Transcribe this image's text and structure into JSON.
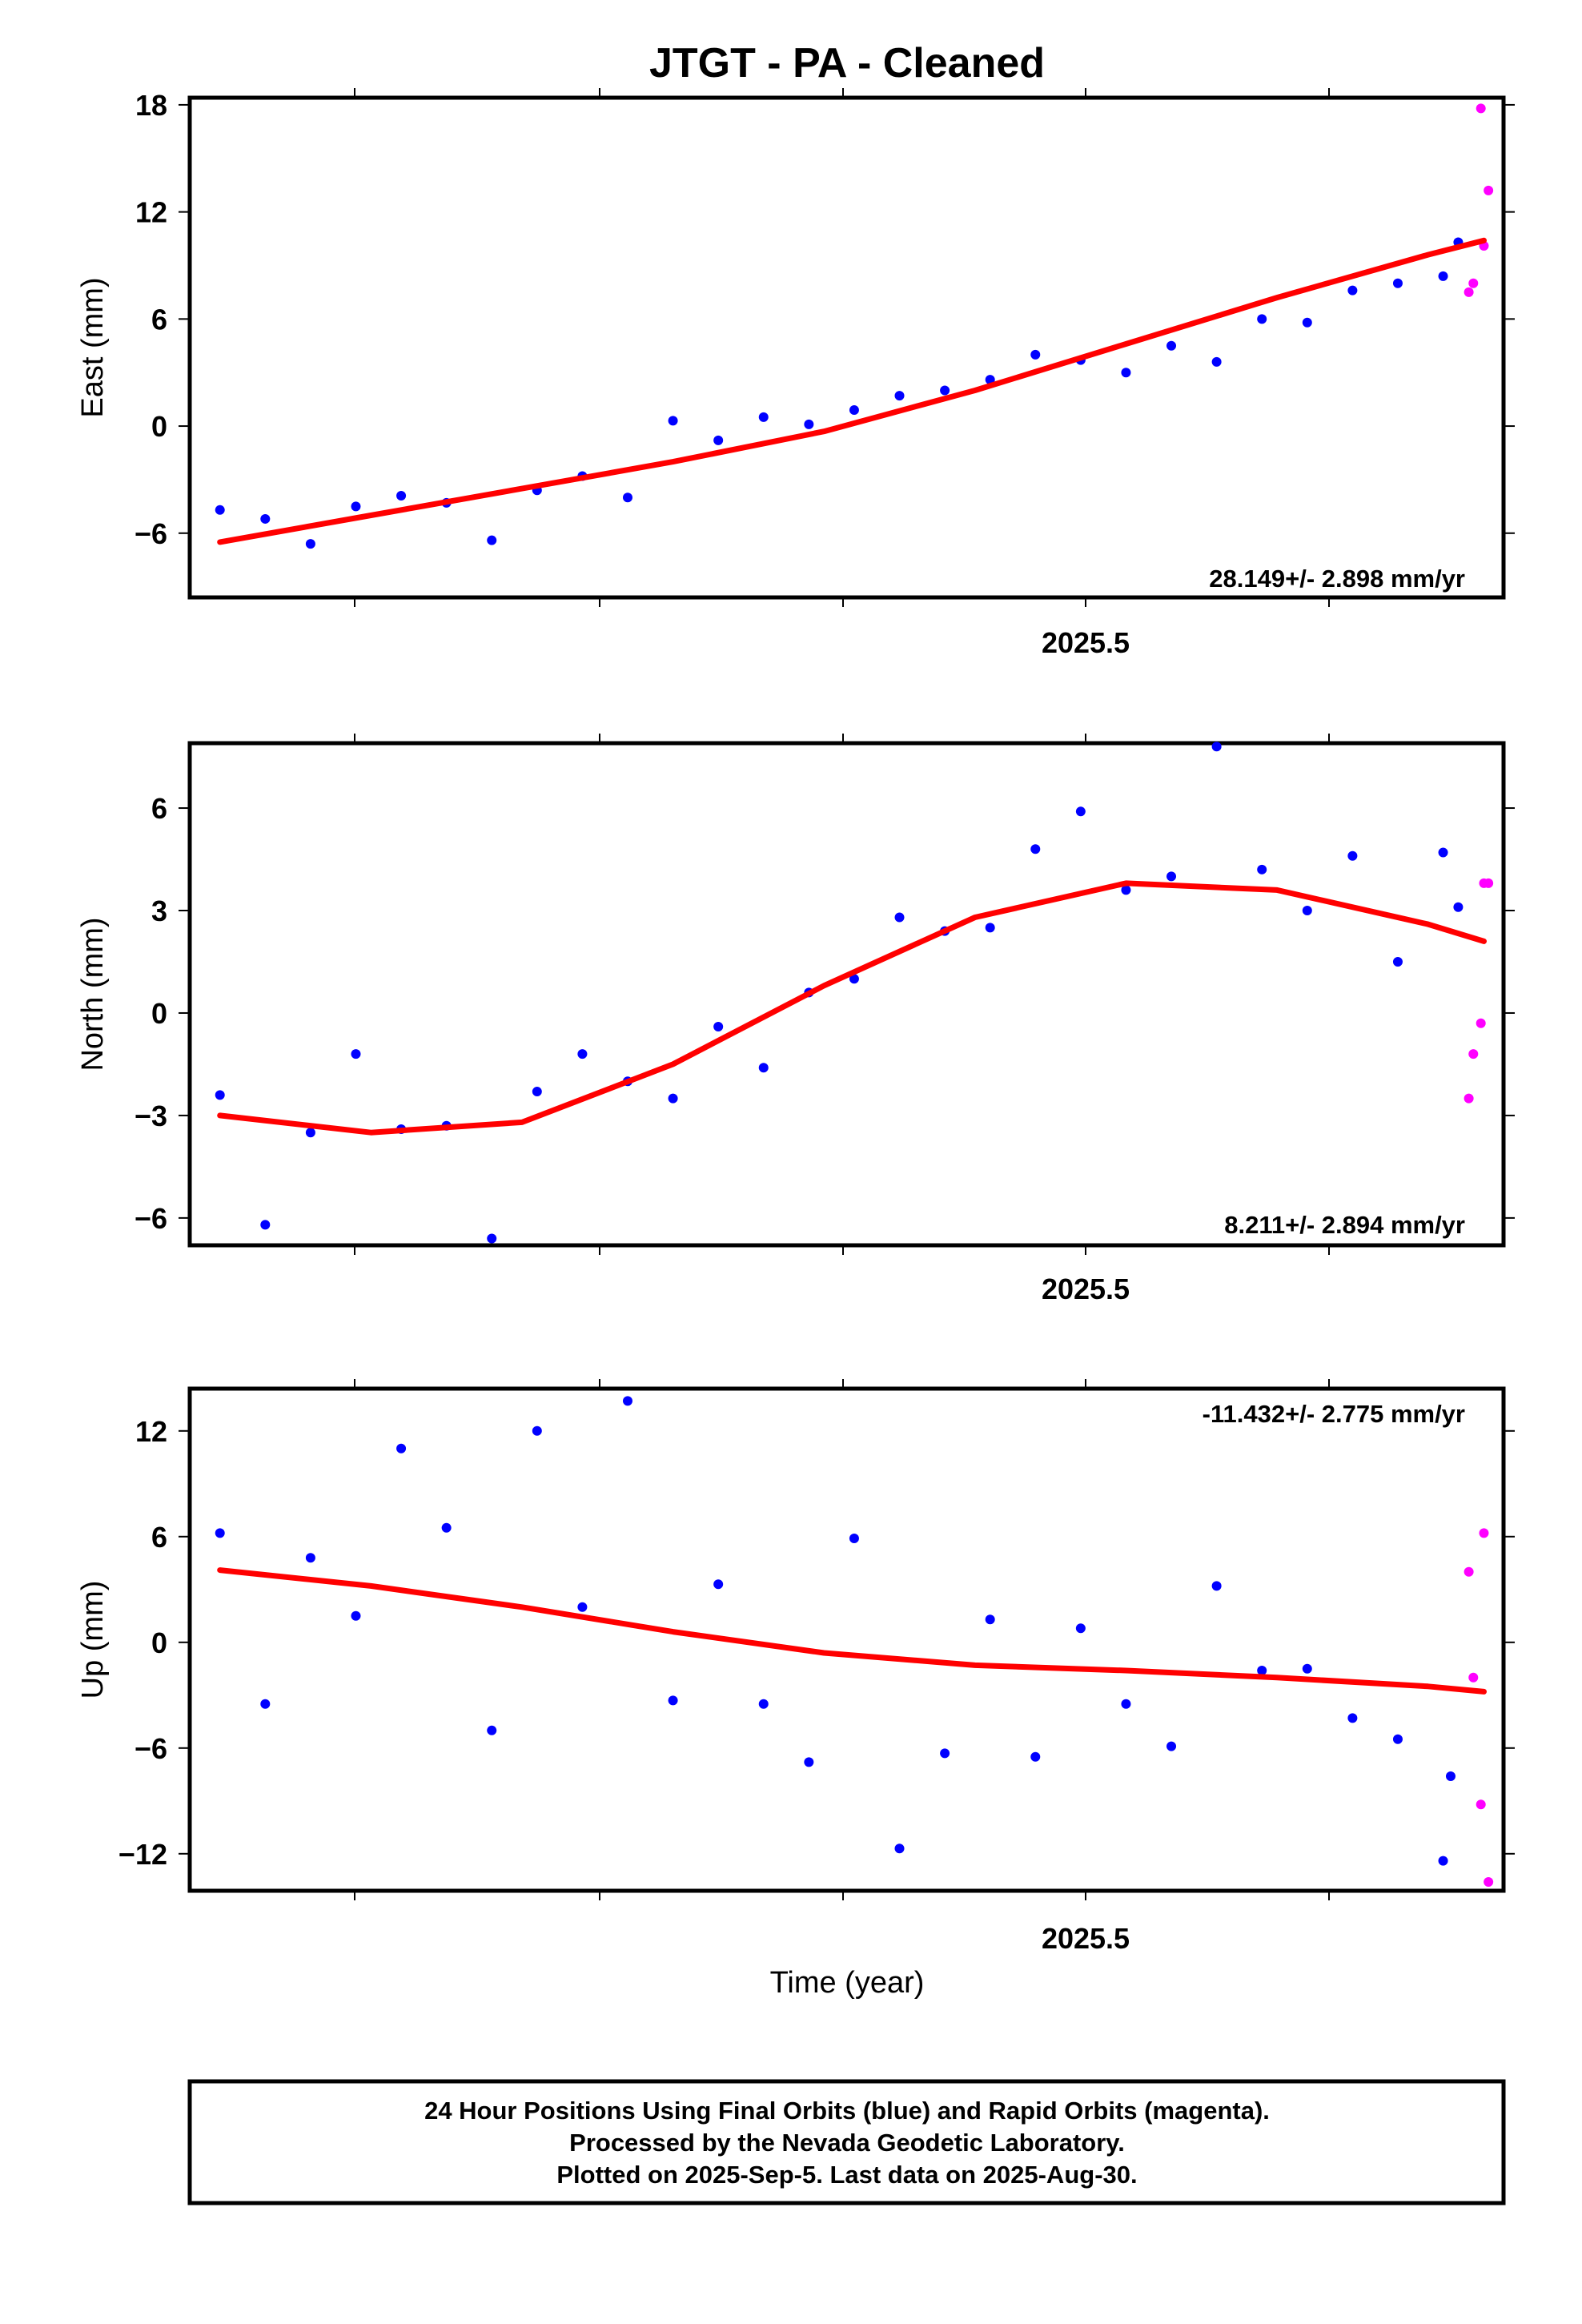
{
  "chart_data": [
    {
      "type": "scatter",
      "title": "JTGT  - PA - Cleaned",
      "ylabel": "East (mm)",
      "xlabel": "",
      "x_tick_labels": [
        {
          "x": 2025.5,
          "label": "2025.5"
        }
      ],
      "ylim": [
        -9.6,
        18.4
      ],
      "yticks": [
        18,
        12,
        6,
        0,
        -6
      ],
      "ytick_labels": [
        "18",
        "12",
        "6",
        "0",
        "−6"
      ],
      "rate": "28.149+/- 2.898 mm/yr",
      "colors": {
        "final": "#0000ff",
        "rapid": "#ff00ff",
        "fit": "#ff0000"
      },
      "fit": {
        "x": [
          2024.9,
          2025.0,
          2025.1,
          2025.2,
          2025.3,
          2025.4,
          2025.5,
          2025.6,
          2025.7,
          2025.737
        ],
        "y": [
          -6.5,
          -5.0,
          -3.5,
          -2.0,
          -0.3,
          2.0,
          4.6,
          7.2,
          9.6,
          10.4
        ]
      },
      "series": [
        {
          "name": "Final Orbits",
          "color": "#0000ff",
          "x": [
            2024.9,
            2024.93,
            2024.96,
            2024.99,
            2025.02,
            2025.05,
            2025.08,
            2025.11,
            2025.14,
            2025.17,
            2025.2,
            2025.23,
            2025.26,
            2025.29,
            2025.32,
            2025.35,
            2025.38,
            2025.41,
            2025.44,
            2025.47,
            2025.5,
            2025.53,
            2025.56,
            2025.59,
            2025.62,
            2025.65,
            2025.68,
            2025.71,
            2025.72
          ],
          "y": [
            -4.7,
            -5.2,
            -6.6,
            -4.5,
            -3.9,
            -4.3,
            -6.4,
            -3.6,
            -2.8,
            -4.0,
            0.3,
            -0.8,
            0.5,
            0.1,
            0.9,
            1.7,
            2.0,
            2.6,
            4.0,
            3.7,
            3.0,
            4.5,
            3.6,
            6.0,
            5.8,
            7.6,
            8.0,
            8.4,
            10.3
          ]
        },
        {
          "name": "Rapid Orbits",
          "color": "#ff00ff",
          "x": [
            2025.727,
            2025.73,
            2025.735,
            2025.737,
            2025.74
          ],
          "y": [
            7.5,
            8.0,
            17.8,
            10.1,
            13.2
          ]
        }
      ]
    },
    {
      "type": "scatter",
      "title": "",
      "ylabel": "North (mm)",
      "xlabel": "",
      "x_tick_labels": [
        {
          "x": 2025.5,
          "label": "2025.5"
        }
      ],
      "ylim": [
        -6.8,
        7.9
      ],
      "yticks": [
        6,
        3,
        0,
        -3,
        -6
      ],
      "ytick_labels": [
        "6",
        "3",
        "0",
        "−3",
        "−6"
      ],
      "rate": "8.211+/- 2.894 mm/yr",
      "colors": {
        "final": "#0000ff",
        "rapid": "#ff00ff",
        "fit": "#ff0000"
      },
      "fit": {
        "x": [
          2024.9,
          2025.0,
          2025.1,
          2025.2,
          2025.3,
          2025.4,
          2025.5,
          2025.6,
          2025.7,
          2025.737
        ],
        "y": [
          -3.0,
          -3.5,
          -3.2,
          -1.5,
          0.8,
          2.8,
          3.8,
          3.6,
          2.6,
          2.1
        ]
      },
      "series": [
        {
          "name": "Final Orbits",
          "color": "#0000ff",
          "x": [
            2024.9,
            2024.93,
            2024.96,
            2024.99,
            2025.02,
            2025.05,
            2025.08,
            2025.11,
            2025.14,
            2025.17,
            2025.2,
            2025.23,
            2025.26,
            2025.29,
            2025.32,
            2025.35,
            2025.38,
            2025.41,
            2025.44,
            2025.47,
            2025.5,
            2025.53,
            2025.56,
            2025.59,
            2025.62,
            2025.65,
            2025.68,
            2025.71,
            2025.72
          ],
          "y": [
            -2.4,
            -6.2,
            -3.5,
            -1.2,
            -3.4,
            -3.3,
            -6.6,
            -2.3,
            -1.2,
            -2.0,
            -2.5,
            -0.4,
            -1.6,
            0.6,
            1.0,
            2.8,
            2.4,
            2.5,
            4.8,
            5.9,
            3.6,
            4.0,
            7.8,
            4.2,
            3.0,
            4.6,
            1.5,
            4.7,
            3.1
          ]
        },
        {
          "name": "Rapid Orbits",
          "color": "#ff00ff",
          "x": [
            2025.727,
            2025.73,
            2025.735,
            2025.737,
            2025.74
          ],
          "y": [
            -2.5,
            -1.2,
            -0.3,
            3.8,
            3.8
          ]
        }
      ]
    },
    {
      "type": "scatter",
      "title": "",
      "ylabel": "Up (mm)",
      "xlabel": "Time (year)",
      "x_tick_labels": [
        {
          "x": 2025.5,
          "label": "2025.5"
        }
      ],
      "ylim": [
        -14.1,
        14.4
      ],
      "yticks": [
        12,
        6,
        0,
        -6,
        -12
      ],
      "ytick_labels": [
        "12",
        "6",
        "0",
        "−6",
        "−12"
      ],
      "rate": "-11.432+/- 2.775 mm/yr",
      "colors": {
        "final": "#0000ff",
        "rapid": "#ff00ff",
        "fit": "#ff0000"
      },
      "fit": {
        "x": [
          2024.9,
          2025.0,
          2025.1,
          2025.2,
          2025.3,
          2025.4,
          2025.5,
          2025.6,
          2025.7,
          2025.737
        ],
        "y": [
          4.1,
          3.2,
          2.0,
          0.6,
          -0.6,
          -1.3,
          -1.6,
          -2.0,
          -2.5,
          -2.8
        ]
      },
      "series": [
        {
          "name": "Final Orbits",
          "color": "#0000ff",
          "x": [
            2024.9,
            2024.93,
            2024.96,
            2024.99,
            2025.02,
            2025.05,
            2025.08,
            2025.11,
            2025.14,
            2025.17,
            2025.2,
            2025.23,
            2025.26,
            2025.29,
            2025.32,
            2025.35,
            2025.38,
            2025.41,
            2025.44,
            2025.47,
            2025.5,
            2025.53,
            2025.56,
            2025.59,
            2025.62,
            2025.65,
            2025.68,
            2025.71,
            2025.715
          ],
          "y": [
            6.2,
            -3.5,
            4.8,
            1.5,
            11.0,
            6.5,
            -5.0,
            12.0,
            2.0,
            13.7,
            -3.3,
            3.3,
            -3.5,
            -6.8,
            5.9,
            -11.7,
            -6.3,
            1.3,
            -6.5,
            0.8,
            -3.5,
            -5.9,
            3.2,
            -1.6,
            -1.5,
            -4.3,
            -5.5,
            -12.4,
            -7.6
          ]
        },
        {
          "name": "Rapid Orbits",
          "color": "#ff00ff",
          "x": [
            2025.727,
            2025.73,
            2025.735,
            2025.737,
            2025.74
          ],
          "y": [
            4.0,
            -2.0,
            -9.2,
            6.2,
            -13.6
          ]
        }
      ]
    }
  ],
  "footer": {
    "line1": "24 Hour Positions Using Final Orbits (blue) and Rapid Orbits (magenta).",
    "line2": "Processed by the Nevada Geodetic Laboratory.",
    "line3": "Plotted on 2025-Sep-5. Last data on 2025-Aug-30."
  }
}
